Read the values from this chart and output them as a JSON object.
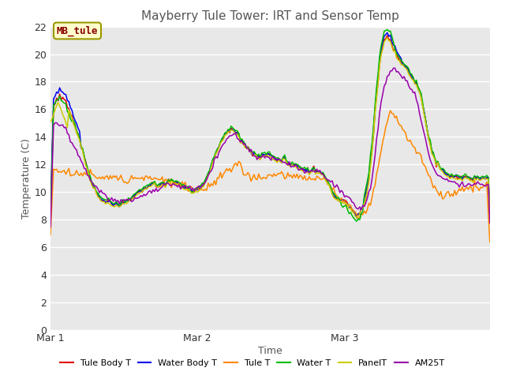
{
  "title": "Mayberry Tule Tower: IRT and Sensor Temp",
  "xlabel": "Time",
  "ylabel": "Temperature (C)",
  "ylim": [
    0,
    22
  ],
  "yticks": [
    0,
    2,
    4,
    6,
    8,
    10,
    12,
    14,
    16,
    18,
    20,
    22
  ],
  "xtick_labels": [
    "Mar 1",
    "Mar 2",
    "Mar 3"
  ],
  "xtick_positions": [
    0,
    96,
    192
  ],
  "n_points": 288,
  "bg_color": "#ffffff",
  "plot_bg_color": "#e8e8e8",
  "grid_color": "#ffffff",
  "series": {
    "Tule Body T": {
      "color": "#dd0000"
    },
    "Water Body T": {
      "color": "#0000ee"
    },
    "Tule T": {
      "color": "#ff8800"
    },
    "Water T": {
      "color": "#00bb00"
    },
    "PanelT": {
      "color": "#cccc00"
    },
    "AM25T": {
      "color": "#9900aa"
    }
  },
  "annotation_text": "MB_tule",
  "annotation_color": "#880000",
  "annotation_bg": "#ffffcc",
  "annotation_border": "#999900"
}
